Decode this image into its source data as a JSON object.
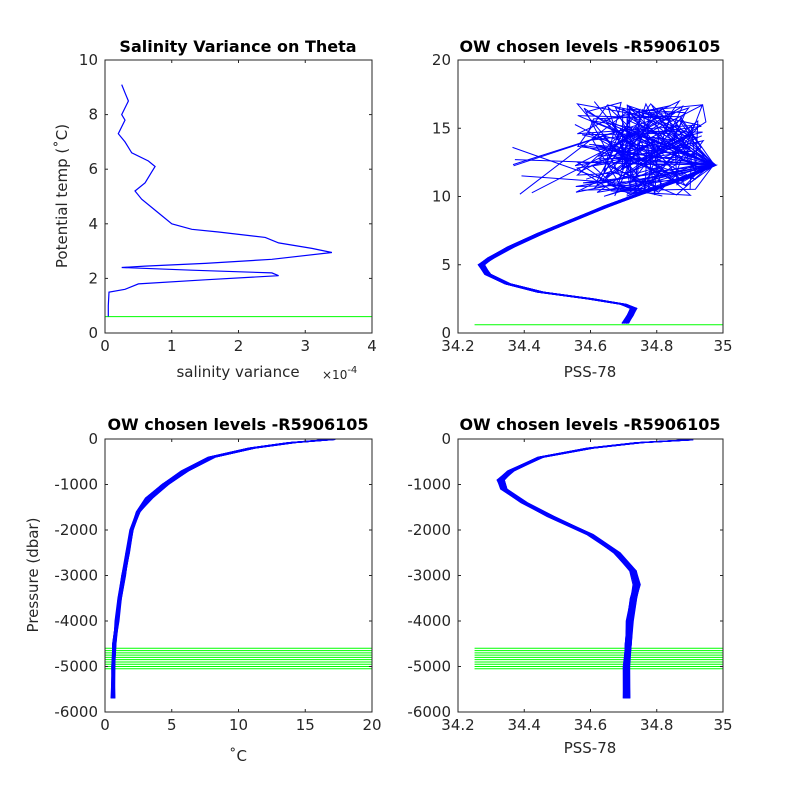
{
  "figure": {
    "background": "#ffffff"
  },
  "colors": {
    "series": "#0000ff",
    "levels": "#00ff00",
    "axis": "#262626"
  },
  "chart_data": [
    {
      "id": "salvar",
      "type": "line",
      "title": "Salinity Variance on Theta",
      "xlabel": "salinity variance",
      "x_exponent_label": "×10",
      "x_exponent_power": "-4",
      "ylabel": "Potential temp (˚C)",
      "xlim": [
        0,
        4
      ],
      "ylim": [
        0,
        10
      ],
      "xticks": [
        0,
        1,
        2,
        3,
        4
      ],
      "xtick_labels": [
        "0",
        "1",
        "2",
        "3",
        "4"
      ],
      "yticks": [
        0,
        2,
        4,
        6,
        8,
        10
      ],
      "ytick_labels": [
        "0",
        "2",
        "4",
        "6",
        "8",
        "10"
      ],
      "series": [
        {
          "color": "#0000ff",
          "points": [
            [
              0.05,
              0.6
            ],
            [
              0.05,
              1.0
            ],
            [
              0.06,
              1.5
            ],
            [
              0.3,
              1.6
            ],
            [
              0.5,
              1.8
            ],
            [
              1.5,
              1.95
            ],
            [
              2.6,
              2.1
            ],
            [
              2.5,
              2.2
            ],
            [
              1.3,
              2.3
            ],
            [
              0.25,
              2.4
            ],
            [
              0.6,
              2.45
            ],
            [
              1.5,
              2.55
            ],
            [
              2.5,
              2.7
            ],
            [
              3.4,
              2.95
            ],
            [
              3.1,
              3.1
            ],
            [
              2.6,
              3.3
            ],
            [
              2.4,
              3.5
            ],
            [
              1.7,
              3.7
            ],
            [
              1.3,
              3.8
            ],
            [
              1.0,
              4.0
            ],
            [
              0.8,
              4.4
            ],
            [
              0.55,
              4.9
            ],
            [
              0.45,
              5.2
            ],
            [
              0.6,
              5.5
            ],
            [
              0.7,
              5.9
            ],
            [
              0.75,
              6.1
            ],
            [
              0.65,
              6.3
            ],
            [
              0.4,
              6.6
            ],
            [
              0.3,
              7.0
            ],
            [
              0.2,
              7.3
            ],
            [
              0.3,
              7.8
            ],
            [
              0.25,
              8.0
            ],
            [
              0.35,
              8.5
            ],
            [
              0.3,
              8.8
            ],
            [
              0.25,
              9.1
            ]
          ]
        }
      ],
      "hlines": [
        0.6
      ]
    },
    {
      "id": "theta_sal",
      "type": "line",
      "title": "OW chosen levels -R5906105",
      "xlabel": "PSS-78",
      "ylabel": "",
      "xlim": [
        34.2,
        35
      ],
      "ylim": [
        0,
        20
      ],
      "xticks": [
        34.2,
        34.4,
        34.6,
        34.8,
        35.0
      ],
      "xtick_labels": [
        "34.2",
        "34.4",
        "34.6",
        "34.8",
        "35"
      ],
      "yticks": [
        0,
        5,
        10,
        15,
        20
      ],
      "ytick_labels": [
        "0",
        "5",
        "10",
        "15",
        "20"
      ],
      "series_base": [
        [
          34.705,
          0.7
        ],
        [
          34.72,
          1.3
        ],
        [
          34.73,
          1.8
        ],
        [
          34.7,
          2.1
        ],
        [
          34.6,
          2.5
        ],
        [
          34.45,
          3.0
        ],
        [
          34.35,
          3.6
        ],
        [
          34.29,
          4.3
        ],
        [
          34.27,
          5.0
        ],
        [
          34.3,
          5.5
        ],
        [
          34.36,
          6.3
        ],
        [
          34.45,
          7.3
        ],
        [
          34.55,
          8.3
        ],
        [
          34.65,
          9.3
        ],
        [
          34.75,
          10.2
        ],
        [
          34.88,
          11.3
        ],
        [
          34.97,
          12.3
        ]
      ],
      "n_profiles": 40,
      "spike_region": {
        "x": [
          34.55,
          34.95
        ],
        "y": [
          10.0,
          17.0
        ]
      },
      "hlines": [
        0.6
      ]
    },
    {
      "id": "temp_pres",
      "type": "line",
      "title": "OW chosen levels -R5906105",
      "xlabel": "˚C",
      "ylabel": "Pressure (dbar)",
      "xlim": [
        0,
        20
      ],
      "ylim": [
        -6000,
        0
      ],
      "xticks": [
        0,
        5,
        10,
        15,
        20
      ],
      "xtick_labels": [
        "0",
        "5",
        "10",
        "15",
        "20"
      ],
      "yticks": [
        -6000,
        -5000,
        -4000,
        -3000,
        -2000,
        -1000,
        0
      ],
      "ytick_labels": [
        "-6000",
        "-5000",
        "-4000",
        "-3000",
        "-2000",
        "-1000",
        "0"
      ],
      "series_base": [
        [
          0.6,
          -5700
        ],
        [
          0.6,
          -5000
        ],
        [
          0.7,
          -4500
        ],
        [
          0.9,
          -4000
        ],
        [
          1.1,
          -3500
        ],
        [
          1.4,
          -3000
        ],
        [
          1.7,
          -2500
        ],
        [
          2.0,
          -2000
        ],
        [
          2.5,
          -1600
        ],
        [
          3.3,
          -1300
        ],
        [
          4.5,
          -1000
        ],
        [
          6.0,
          -700
        ],
        [
          8.0,
          -400
        ],
        [
          11.0,
          -200
        ],
        [
          14.0,
          -80
        ],
        [
          17.0,
          -10
        ]
      ],
      "n_profiles": 40,
      "hlines": [
        -4600,
        -4650,
        -4700,
        -4750,
        -4800,
        -4850,
        -4900,
        -4950,
        -5000,
        -5050
      ]
    },
    {
      "id": "sal_pres",
      "type": "line",
      "title": "OW chosen levels -R5906105",
      "xlabel": "PSS-78",
      "ylabel": "",
      "xlim": [
        34.2,
        35
      ],
      "ylim": [
        -6000,
        0
      ],
      "xticks": [
        34.2,
        34.4,
        34.6,
        34.8,
        35.0
      ],
      "xtick_labels": [
        "34.2",
        "34.4",
        "34.6",
        "34.8",
        "35"
      ],
      "yticks": [
        -6000,
        -5000,
        -4000,
        -3000,
        -2000,
        -1000,
        0
      ],
      "ytick_labels": [
        "-6000",
        "-5000",
        "-4000",
        "-3000",
        "-2000",
        "-1000",
        "0"
      ],
      "series_base": [
        [
          34.71,
          -5700
        ],
        [
          34.71,
          -5000
        ],
        [
          34.715,
          -4500
        ],
        [
          34.72,
          -4000
        ],
        [
          34.73,
          -3500
        ],
        [
          34.74,
          -3200
        ],
        [
          34.73,
          -2900
        ],
        [
          34.68,
          -2500
        ],
        [
          34.6,
          -2100
        ],
        [
          34.48,
          -1700
        ],
        [
          34.4,
          -1400
        ],
        [
          34.34,
          -1100
        ],
        [
          34.33,
          -900
        ],
        [
          34.36,
          -700
        ],
        [
          34.45,
          -400
        ],
        [
          34.6,
          -200
        ],
        [
          34.75,
          -80
        ],
        [
          34.9,
          -20
        ]
      ],
      "n_profiles": 40,
      "hlines": [
        -4600,
        -4650,
        -4700,
        -4750,
        -4800,
        -4850,
        -4900,
        -4950,
        -5000,
        -5050
      ]
    }
  ]
}
